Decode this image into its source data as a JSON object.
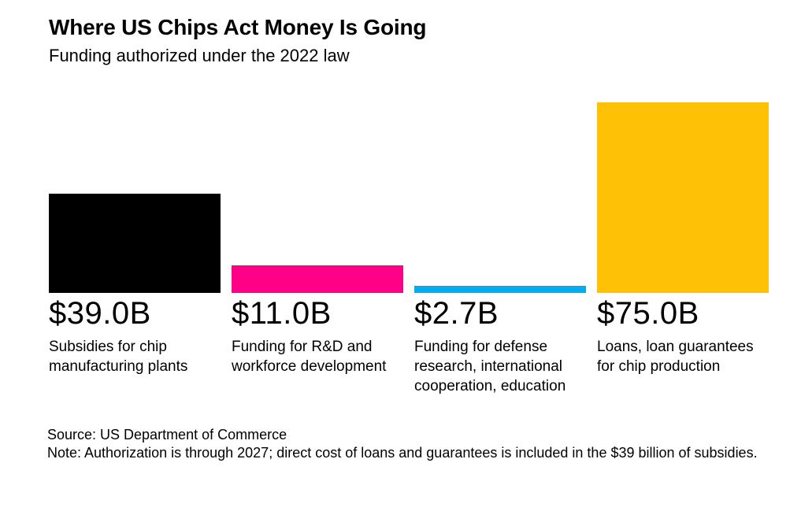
{
  "page": {
    "background_color": "#ffffff"
  },
  "header": {
    "title": "Where US Chips Act Money Is Going",
    "subtitle": "Funding authorized under the 2022 law"
  },
  "chart_data": {
    "type": "bar",
    "title": "Where US Chips Act Money Is Going",
    "subtitle": "Funding authorized under the 2022 law",
    "categories": [
      "Subsidies for chip manufacturing plants",
      "Funding for R&D and workforce development",
      "Funding for defense research, international cooperation, education",
      "Loans, loan guarantees for chip production"
    ],
    "values": [
      39.0,
      11.0,
      2.7,
      75.0
    ],
    "value_labels": [
      "$39.0B",
      "$11.0B",
      "$2.7B",
      "$75.0B"
    ],
    "bar_colors": [
      "#000000",
      "#FF0087",
      "#00AEF0",
      "#FFC105"
    ],
    "ylim": [
      0,
      75
    ],
    "grid": false,
    "legend": false,
    "axes_hidden": true,
    "value_label_position": "below-bar"
  },
  "footer": {
    "source": "Source: US Department of Commerce",
    "note": "Note: Authorization is through 2027; direct cost of loans and guarantees is included in the $39 billion of subsidies."
  }
}
